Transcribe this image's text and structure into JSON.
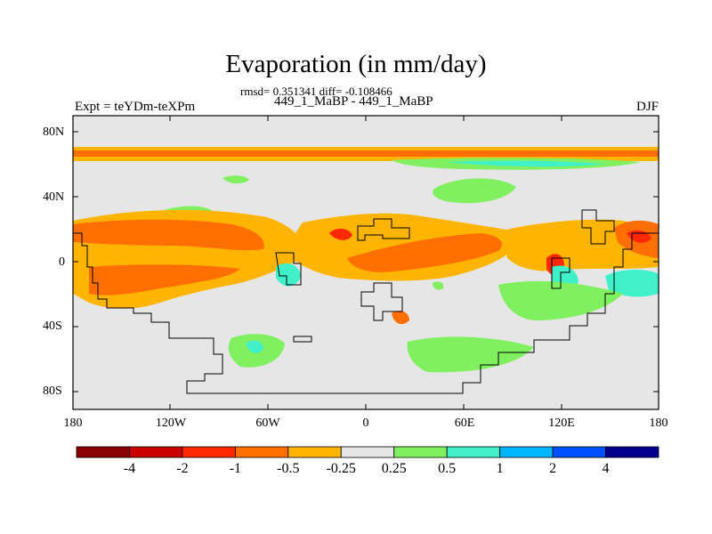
{
  "title": "Evaporation (in mm/day)",
  "stats": "rmsd= 0.351341 diff= -0.108466",
  "subtitle": "449_1_MaBP - 449_1_MaBP",
  "left_label": "Expt = teYDm-teXPm",
  "right_label": "DJF",
  "y_ticks": [
    "80N",
    "40N",
    "0",
    "40S",
    "80S"
  ],
  "x_ticks": [
    "180",
    "120W",
    "60W",
    "0",
    "60E",
    "120E",
    "180"
  ],
  "colorbar": {
    "labels": [
      "-4",
      "-2",
      "-1",
      "-0.5",
      "-0.25",
      "0.25",
      "0.5",
      "1",
      "2",
      "4"
    ],
    "colors": [
      "#8b0000",
      "#c80000",
      "#ff2800",
      "#ff6e00",
      "#ffb400",
      "#e6e6e6",
      "#80f060",
      "#40f0c8",
      "#00b4ff",
      "#0050ff",
      "#00008c"
    ]
  }
}
